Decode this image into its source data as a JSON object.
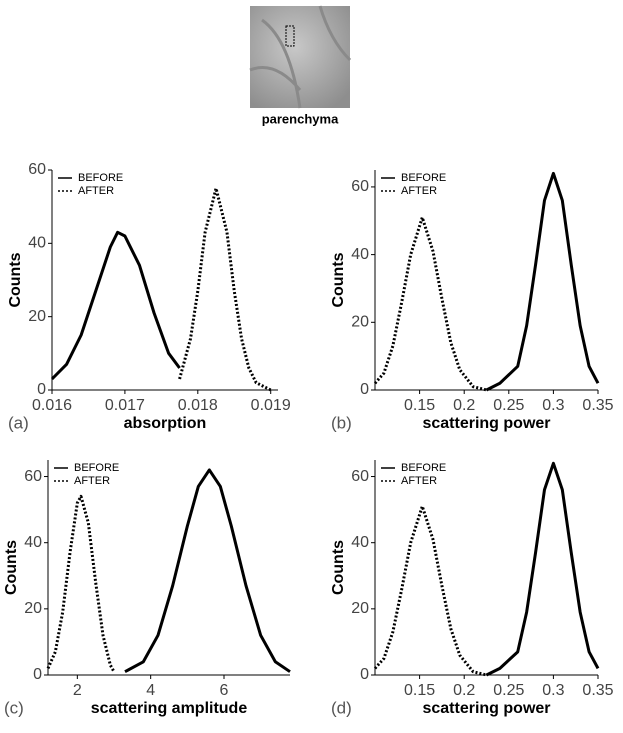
{
  "image_label": "parenchyma",
  "chart_data": [
    {
      "type": "line",
      "panel_label": "(a)",
      "xlabel": "absorption",
      "ylabel": "Counts",
      "xlim": [
        0.016,
        0.0191
      ],
      "ylim": [
        0,
        60
      ],
      "xticks": [
        0.016,
        0.017,
        0.018,
        0.019
      ],
      "yticks": [
        0,
        20,
        40,
        60
      ],
      "legend": "upper left",
      "series": [
        {
          "name": "BEFORE",
          "color": "#000000",
          "dash": "solid",
          "x": [
            0.016,
            0.0162,
            0.0164,
            0.0166,
            0.0168,
            0.0169,
            0.017,
            0.0172,
            0.0174,
            0.0176,
            0.01775
          ],
          "values": [
            3,
            7,
            15,
            27,
            39,
            43,
            42,
            34,
            21,
            10,
            6
          ]
        },
        {
          "name": "AFTER",
          "color": "#000000",
          "dash": "dotted",
          "x": [
            0.01775,
            0.0179,
            0.018,
            0.0181,
            0.01825,
            0.0184,
            0.0185,
            0.0186,
            0.0187,
            0.0188,
            0.019
          ],
          "values": [
            3,
            14,
            27,
            43,
            55,
            43,
            27,
            14,
            6,
            2,
            0
          ]
        }
      ]
    },
    {
      "type": "line",
      "panel_label": "(b)",
      "xlabel": "scattering power",
      "ylabel": "Counts",
      "xlim": [
        0.1,
        0.35
      ],
      "ylim": [
        0,
        65
      ],
      "xticks": [
        0.15,
        0.2,
        0.25,
        0.3,
        0.35
      ],
      "yticks": [
        0,
        20,
        40,
        60
      ],
      "legend": "upper left",
      "series": [
        {
          "name": "BEFORE",
          "color": "#000000",
          "dash": "solid",
          "x": [
            0.225,
            0.24,
            0.26,
            0.27,
            0.28,
            0.29,
            0.3,
            0.31,
            0.32,
            0.33,
            0.34,
            0.35
          ],
          "values": [
            0,
            2,
            7,
            19,
            37,
            56,
            64,
            56,
            37,
            19,
            7,
            2
          ]
        },
        {
          "name": "AFTER",
          "color": "#000000",
          "dash": "dotted",
          "x": [
            0.1,
            0.11,
            0.12,
            0.13,
            0.14,
            0.153,
            0.165,
            0.175,
            0.185,
            0.195,
            0.21,
            0.225
          ],
          "values": [
            2,
            5,
            13,
            26,
            40,
            51,
            41,
            27,
            14,
            6,
            1,
            0
          ]
        }
      ]
    },
    {
      "type": "line",
      "panel_label": "(c)",
      "xlabel": "scattering amplitude",
      "ylabel": "Counts",
      "xlim": [
        1.2,
        7.8
      ],
      "ylim": [
        0,
        65
      ],
      "xticks": [
        2,
        4,
        6
      ],
      "yticks": [
        0,
        20,
        40,
        60
      ],
      "legend": "upper left",
      "series": [
        {
          "name": "BEFORE",
          "color": "#000000",
          "dash": "solid",
          "x": [
            3.3,
            3.8,
            4.2,
            4.6,
            5.0,
            5.3,
            5.6,
            5.9,
            6.2,
            6.6,
            7.0,
            7.4,
            7.8
          ],
          "values": [
            1,
            4,
            12,
            27,
            45,
            57,
            62,
            57,
            45,
            27,
            12,
            4,
            1
          ]
        },
        {
          "name": "AFTER",
          "color": "#000000",
          "dash": "dotted",
          "x": [
            1.2,
            1.4,
            1.6,
            1.8,
            2.0,
            2.1,
            2.3,
            2.5,
            2.7,
            2.9,
            3.0
          ],
          "values": [
            2,
            7,
            19,
            37,
            52,
            54,
            46,
            28,
            12,
            3,
            1
          ]
        }
      ]
    },
    {
      "type": "line",
      "panel_label": "(d)",
      "xlabel": "scattering power",
      "ylabel": "Counts",
      "xlim": [
        0.1,
        0.35
      ],
      "ylim": [
        0,
        65
      ],
      "xticks": [
        0.15,
        0.2,
        0.25,
        0.3,
        0.35
      ],
      "yticks": [
        0,
        20,
        40,
        60
      ],
      "legend": "upper left",
      "series": [
        {
          "name": "BEFORE",
          "color": "#000000",
          "dash": "solid",
          "x": [
            0.225,
            0.24,
            0.26,
            0.27,
            0.28,
            0.29,
            0.3,
            0.31,
            0.32,
            0.33,
            0.34,
            0.35
          ],
          "values": [
            0,
            2,
            7,
            19,
            37,
            56,
            64,
            56,
            37,
            19,
            7,
            2
          ]
        },
        {
          "name": "AFTER",
          "color": "#000000",
          "dash": "dotted",
          "x": [
            0.1,
            0.11,
            0.12,
            0.13,
            0.14,
            0.153,
            0.165,
            0.175,
            0.185,
            0.195,
            0.21,
            0.225
          ],
          "values": [
            2,
            5,
            13,
            26,
            40,
            51,
            41,
            27,
            14,
            6,
            1,
            0
          ]
        }
      ]
    }
  ]
}
